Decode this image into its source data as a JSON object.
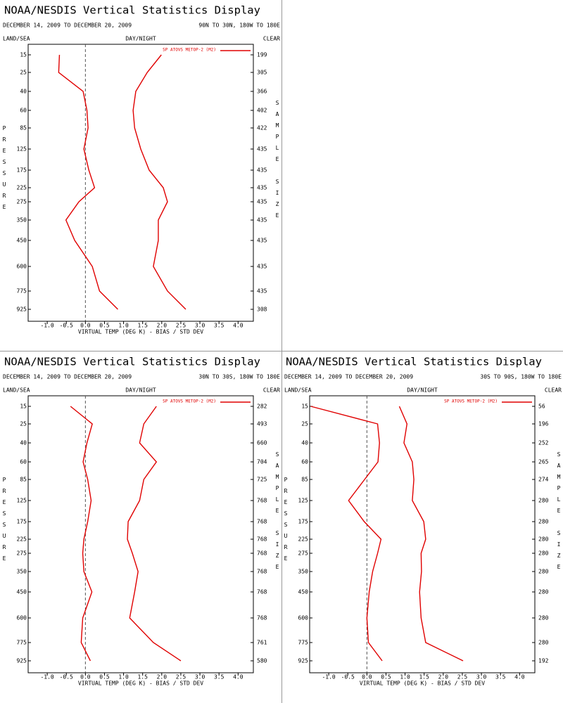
{
  "chart_data": [
    {
      "type": "line",
      "title": "NOAA/NESDIS Vertical Statistics Display",
      "subtitle": "DECEMBER 14, 2009 TO DECEMBER 20, 2009",
      "region": "90N TO 30N, 180W TO 180E",
      "left_header": "LAND/SEA",
      "center_header": "DAY/NIGHT",
      "right_header": "CLEAR",
      "ylabel": "PRESSURE",
      "y2label": "SAMPLE SIZE",
      "xlabel": "VIRTUAL TEMP (DEG K) - BIAS / STD DEV",
      "categories": [
        "15",
        "25",
        "40",
        "60",
        "85",
        "125",
        "175",
        "225",
        "275",
        "350",
        "450",
        "600",
        "775",
        "925"
      ],
      "sample_sizes": [
        199,
        305,
        366,
        402,
        422,
        435,
        435,
        435,
        435,
        435,
        435,
        435,
        435,
        308
      ],
      "series": [
        {
          "name": "SP ATOVS METOP-2 (M2)",
          "color": "#e00000",
          "values": [
            -0.68,
            -0.7,
            -0.06,
            0.04,
            0.07,
            -0.04,
            0.09,
            0.24,
            -0.17,
            -0.51,
            -0.28,
            0.18,
            0.37,
            0.85
          ],
          "std_dev": [
            1.99,
            1.62,
            1.32,
            1.25,
            1.29,
            1.45,
            1.67,
            2.04,
            2.15,
            1.91,
            1.91,
            1.78,
            2.15,
            2.63
          ]
        }
      ],
      "xlim": [
        -1.5,
        4.4
      ],
      "xticks": [
        {
          "value": -1,
          "label": "-1.0"
        },
        -0.5,
        {
          "value": 0,
          "label": "0.0"
        },
        0.5,
        {
          "value": 1,
          "label": "1.0"
        },
        1.5,
        {
          "value": 2,
          "label": "2.0"
        },
        2.5,
        {
          "value": 3,
          "label": "3.0"
        },
        3.5,
        {
          "value": 4,
          "label": "4.0"
        }
      ]
    },
    {
      "type": "line",
      "title": "NOAA/NESDIS Vertical Statistics Display",
      "subtitle": "DECEMBER 14, 2009 TO DECEMBER 20, 2009",
      "region": "30N TO 30S, 180W TO 180E",
      "left_header": "LAND/SEA",
      "center_header": "DAY/NIGHT",
      "right_header": "CLEAR",
      "ylabel": "PRESSURE",
      "y2label": "SAMPLE SIZE",
      "xlabel": "VIRTUAL TEMP (DEG K) - BIAS / STD DEV",
      "categories": [
        "15",
        "25",
        "40",
        "60",
        "85",
        "125",
        "175",
        "225",
        "275",
        "350",
        "450",
        "600",
        "775",
        "925"
      ],
      "sample_sizes": [
        282,
        493,
        660,
        704,
        725,
        768,
        768,
        768,
        768,
        768,
        768,
        768,
        761,
        580
      ],
      "series": [
        {
          "name": "SP ATOVS METOP-2 (M2)",
          "color": "#e00000",
          "values": [
            -0.39,
            0.18,
            0.04,
            -0.06,
            0.06,
            0.15,
            0.06,
            -0.04,
            -0.07,
            -0.04,
            0.17,
            -0.07,
            -0.11,
            0.13
          ],
          "std_dev": [
            1.86,
            1.53,
            1.42,
            1.86,
            1.53,
            1.42,
            1.12,
            1.1,
            1.23,
            1.38,
            1.29,
            1.16,
            1.78,
            2.5
          ]
        }
      ],
      "xlim": [
        -1.5,
        4.4
      ],
      "xticks": [
        {
          "value": -1,
          "label": "-1.0"
        },
        -0.5,
        {
          "value": 0,
          "label": "0.0"
        },
        0.5,
        {
          "value": 1,
          "label": "1.0"
        },
        1.5,
        {
          "value": 2,
          "label": "2.0"
        },
        2.5,
        {
          "value": 3,
          "label": "3.0"
        },
        3.5,
        {
          "value": 4,
          "label": "4.0"
        }
      ]
    },
    {
      "type": "line",
      "title": "NOAA/NESDIS Vertical Statistics Display",
      "subtitle": "DECEMBER 14, 2009 TO DECEMBER 20, 2009",
      "region": "30S TO 90S, 180W TO 180E",
      "left_header": "LAND/SEA",
      "center_header": "DAY/NIGHT",
      "right_header": "CLEAR",
      "ylabel": "PRESSURE",
      "y2label": "SAMPLE SIZE",
      "xlabel": "VIRTUAL TEMP (DEG K) - BIAS / STD DEV",
      "categories": [
        "15",
        "25",
        "40",
        "60",
        "85",
        "125",
        "175",
        "225",
        "275",
        "350",
        "450",
        "600",
        "775",
        "925"
      ],
      "sample_sizes": [
        56,
        196,
        252,
        265,
        274,
        280,
        280,
        280,
        280,
        280,
        280,
        280,
        280,
        192
      ],
      "series": [
        {
          "name": "SP ATOVS METOP-2 (M2)",
          "color": "#e00000",
          "values": [
            -1.47,
            0.28,
            0.33,
            0.29,
            -0.06,
            -0.48,
            -0.07,
            0.37,
            0.28,
            0.15,
            0.06,
            0.0,
            0.04,
            0.4
          ],
          "std_dev": [
            0.85,
            1.05,
            0.97,
            1.19,
            1.23,
            1.19,
            1.49,
            1.54,
            1.42,
            1.43,
            1.38,
            1.42,
            1.54,
            2.52
          ]
        }
      ],
      "xlim": [
        -1.5,
        4.4
      ],
      "xticks": [
        {
          "value": -1,
          "label": "-1.0"
        },
        -0.5,
        {
          "value": 0,
          "label": "0.0"
        },
        0.5,
        {
          "value": 1,
          "label": "1.0"
        },
        1.5,
        {
          "value": 2,
          "label": "2.0"
        },
        2.5,
        {
          "value": 3,
          "label": "3.0"
        },
        3.5,
        {
          "value": 4,
          "label": "4.0"
        }
      ]
    }
  ]
}
